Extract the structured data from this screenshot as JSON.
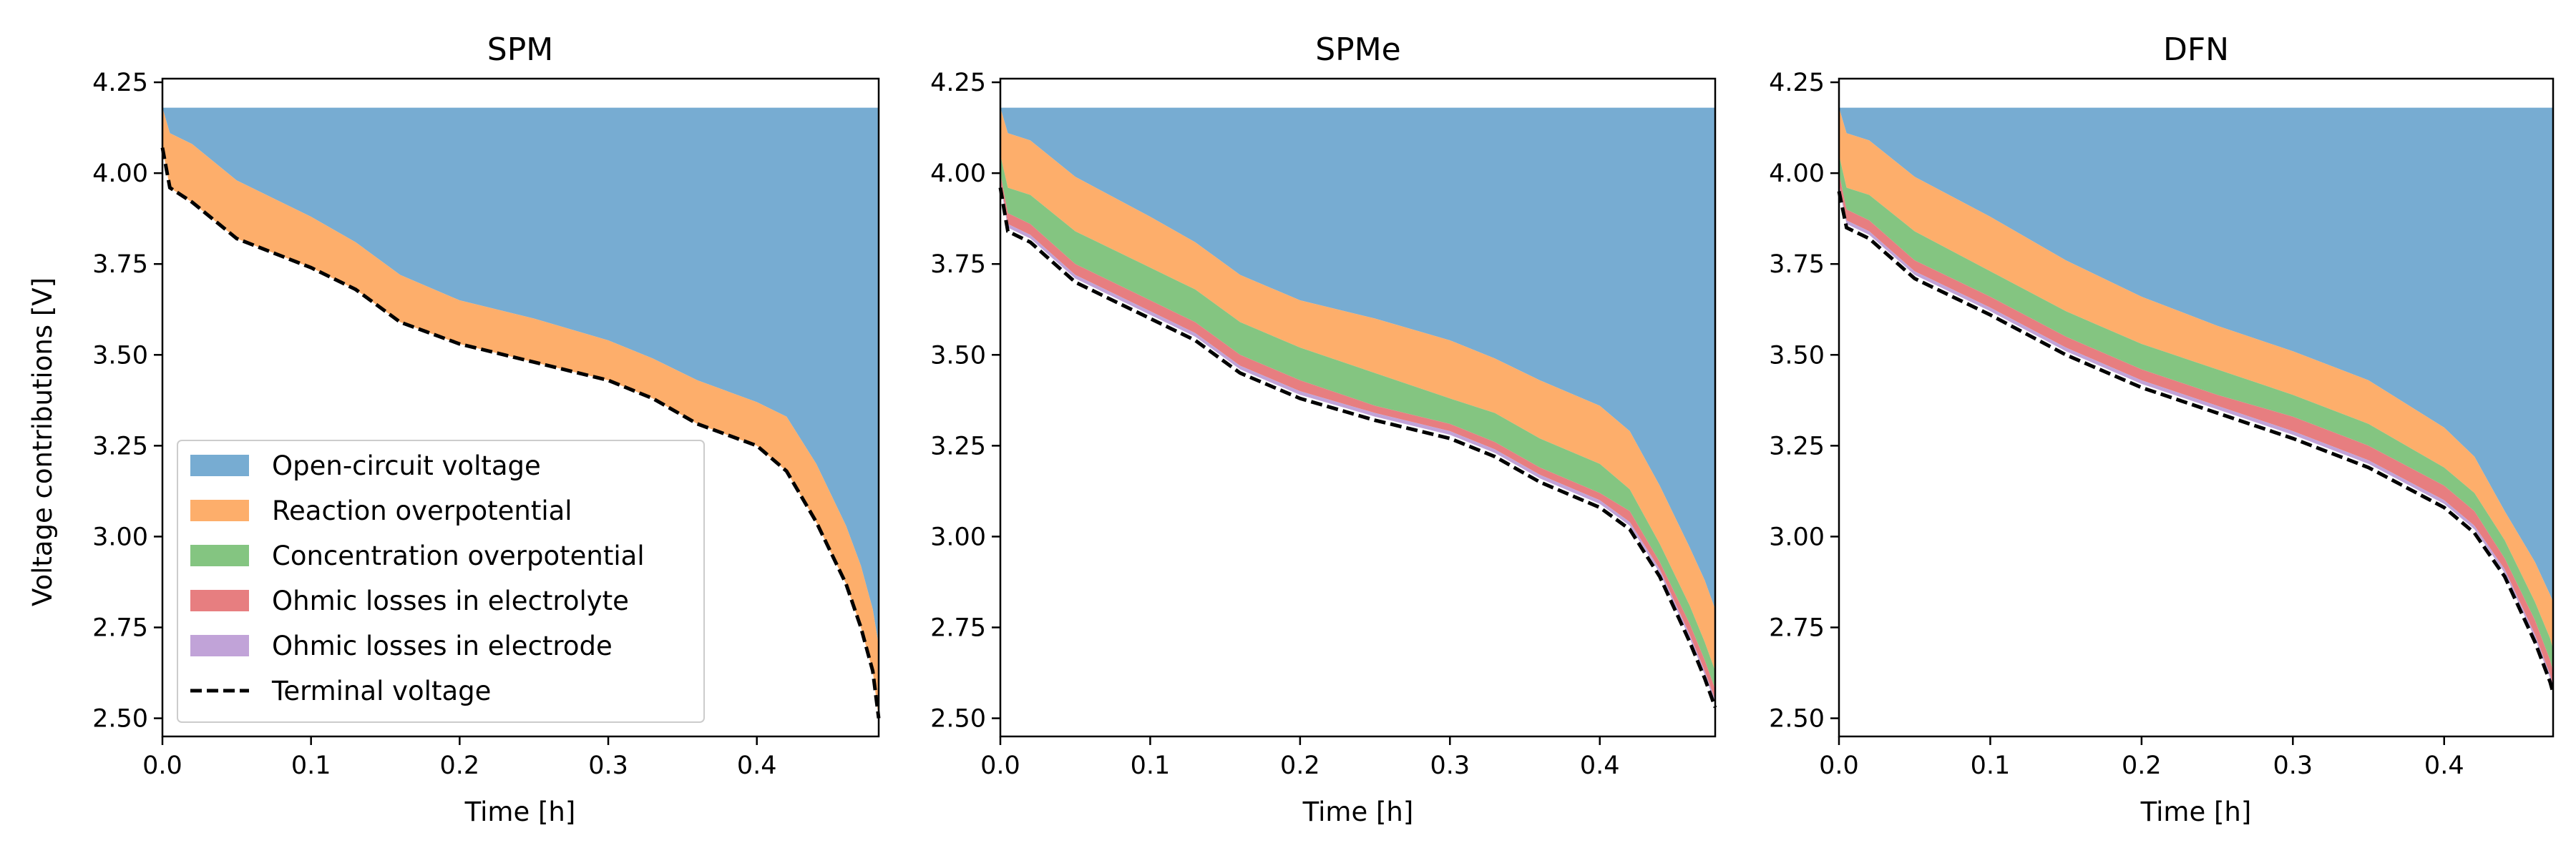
{
  "figure": {
    "panel_titles": [
      "SPM",
      "SPMe",
      "DFN"
    ],
    "xlabel": "Time [h]",
    "ylabel": "Voltage contributions [V]"
  },
  "legend": {
    "placement": "lower-left of first panel",
    "entries": [
      {
        "label": "Open-circuit voltage",
        "color": "#77acd2",
        "style": "patch"
      },
      {
        "label": "Reaction overpotential",
        "color": "#fdae6b",
        "style": "patch"
      },
      {
        "label": "Concentration overpotential",
        "color": "#84c581",
        "style": "patch"
      },
      {
        "label": "Ohmic losses in electrolyte",
        "color": "#e77e80",
        "style": "patch"
      },
      {
        "label": "Ohmic losses in electrode",
        "color": "#c1a3d8",
        "style": "patch"
      },
      {
        "label": "Terminal voltage",
        "color": "#000000",
        "style": "dashed-line"
      }
    ]
  },
  "chart_data": [
    {
      "type": "area",
      "title": "SPM",
      "xlabel": "Time [h]",
      "ylabel": "Voltage contributions [V]",
      "xlim": [
        0,
        0.482
      ],
      "ylim": [
        2.45,
        4.26
      ],
      "xticks": [
        0.0,
        0.1,
        0.2,
        0.3,
        0.4
      ],
      "yticks": [
        2.5,
        2.75,
        3.0,
        3.25,
        3.5,
        3.75,
        4.0,
        4.25
      ],
      "grid": false,
      "ocv_top": 4.18,
      "x": [
        0,
        0.005,
        0.02,
        0.05,
        0.1,
        0.13,
        0.16,
        0.2,
        0.25,
        0.3,
        0.33,
        0.36,
        0.4,
        0.42,
        0.44,
        0.46,
        0.47,
        0.478,
        0.482
      ],
      "boundaries": [
        {
          "name": "Open-circuit voltage",
          "values": [
            4.18,
            4.11,
            4.08,
            3.98,
            3.88,
            3.81,
            3.72,
            3.65,
            3.6,
            3.54,
            3.49,
            3.43,
            3.37,
            3.33,
            3.2,
            3.03,
            2.92,
            2.8,
            2.7
          ]
        },
        {
          "name": "Reaction overpotential",
          "values": [
            4.07,
            3.96,
            3.92,
            3.82,
            3.74,
            3.68,
            3.59,
            3.53,
            3.48,
            3.43,
            3.38,
            3.31,
            3.25,
            3.18,
            3.04,
            2.87,
            2.75,
            2.63,
            2.5
          ]
        },
        {
          "name": "Concentration overpotential",
          "values": [
            4.07,
            3.96,
            3.92,
            3.82,
            3.74,
            3.68,
            3.59,
            3.53,
            3.48,
            3.43,
            3.38,
            3.31,
            3.25,
            3.18,
            3.04,
            2.87,
            2.75,
            2.63,
            2.5
          ]
        },
        {
          "name": "Ohmic losses in electrolyte",
          "values": [
            4.07,
            3.96,
            3.92,
            3.82,
            3.74,
            3.68,
            3.59,
            3.53,
            3.48,
            3.43,
            3.38,
            3.31,
            3.25,
            3.18,
            3.04,
            2.87,
            2.75,
            2.63,
            2.5
          ]
        },
        {
          "name": "Ohmic losses in electrode",
          "values": [
            4.07,
            3.96,
            3.92,
            3.82,
            3.74,
            3.68,
            3.59,
            3.53,
            3.48,
            3.43,
            3.38,
            3.31,
            3.25,
            3.18,
            3.04,
            2.87,
            2.75,
            2.63,
            2.5
          ]
        }
      ],
      "terminal_voltage": [
        4.07,
        3.96,
        3.92,
        3.82,
        3.74,
        3.68,
        3.59,
        3.53,
        3.48,
        3.43,
        3.38,
        3.31,
        3.25,
        3.18,
        3.04,
        2.87,
        2.75,
        2.63,
        2.5
      ]
    },
    {
      "type": "area",
      "title": "SPMe",
      "xlabel": "Time [h]",
      "ylabel": "",
      "xlim": [
        0,
        0.477
      ],
      "ylim": [
        2.45,
        4.26
      ],
      "xticks": [
        0.0,
        0.1,
        0.2,
        0.3,
        0.4
      ],
      "yticks": [
        2.5,
        2.75,
        3.0,
        3.25,
        3.5,
        3.75,
        4.0,
        4.25
      ],
      "grid": false,
      "ocv_top": 4.18,
      "x": [
        0,
        0.005,
        0.02,
        0.05,
        0.1,
        0.13,
        0.16,
        0.2,
        0.25,
        0.3,
        0.33,
        0.36,
        0.4,
        0.42,
        0.44,
        0.46,
        0.47,
        0.477
      ],
      "boundaries": [
        {
          "name": "Open-circuit voltage",
          "values": [
            4.18,
            4.11,
            4.09,
            3.99,
            3.88,
            3.81,
            3.72,
            3.65,
            3.6,
            3.54,
            3.49,
            3.43,
            3.36,
            3.29,
            3.14,
            2.97,
            2.88,
            2.8
          ]
        },
        {
          "name": "Reaction overpotential",
          "values": [
            4.05,
            3.96,
            3.94,
            3.84,
            3.74,
            3.68,
            3.59,
            3.52,
            3.45,
            3.38,
            3.34,
            3.27,
            3.2,
            3.13,
            2.98,
            2.81,
            2.71,
            2.63
          ]
        },
        {
          "name": "Concentration overpotential",
          "values": [
            4.0,
            3.89,
            3.86,
            3.75,
            3.65,
            3.59,
            3.5,
            3.43,
            3.36,
            3.31,
            3.26,
            3.19,
            3.12,
            3.07,
            2.93,
            2.76,
            2.66,
            2.58
          ]
        },
        {
          "name": "Ohmic losses in electrolyte",
          "values": [
            3.98,
            3.86,
            3.83,
            3.72,
            3.62,
            3.56,
            3.47,
            3.4,
            3.34,
            3.29,
            3.24,
            3.17,
            3.1,
            3.04,
            2.91,
            2.73,
            2.63,
            2.55
          ]
        },
        {
          "name": "Ohmic losses in electrode",
          "values": [
            3.97,
            3.85,
            3.82,
            3.71,
            3.61,
            3.55,
            3.46,
            3.39,
            3.33,
            3.28,
            3.23,
            3.16,
            3.09,
            3.03,
            2.9,
            2.72,
            2.62,
            2.54
          ]
        }
      ],
      "terminal_voltage": [
        3.96,
        3.84,
        3.81,
        3.7,
        3.6,
        3.54,
        3.45,
        3.38,
        3.32,
        3.27,
        3.22,
        3.15,
        3.08,
        3.02,
        2.89,
        2.71,
        2.61,
        2.53
      ]
    },
    {
      "type": "area",
      "title": "DFN",
      "xlabel": "Time [h]",
      "ylabel": "",
      "xlim": [
        0,
        0.472
      ],
      "ylim": [
        2.45,
        4.26
      ],
      "xticks": [
        0.0,
        0.1,
        0.2,
        0.3,
        0.4
      ],
      "yticks": [
        2.5,
        2.75,
        3.0,
        3.25,
        3.5,
        3.75,
        4.0,
        4.25
      ],
      "grid": false,
      "ocv_top": 4.18,
      "x": [
        0,
        0.005,
        0.02,
        0.05,
        0.1,
        0.15,
        0.2,
        0.25,
        0.3,
        0.35,
        0.4,
        0.42,
        0.44,
        0.46,
        0.47,
        0.472
      ],
      "boundaries": [
        {
          "name": "Open-circuit voltage",
          "values": [
            4.18,
            4.11,
            4.09,
            3.99,
            3.88,
            3.76,
            3.66,
            3.58,
            3.51,
            3.43,
            3.3,
            3.22,
            3.07,
            2.93,
            2.84,
            2.82
          ]
        },
        {
          "name": "Reaction overpotential",
          "values": [
            4.05,
            3.96,
            3.94,
            3.84,
            3.73,
            3.62,
            3.53,
            3.46,
            3.39,
            3.31,
            3.19,
            3.12,
            2.99,
            2.82,
            2.72,
            2.69
          ]
        },
        {
          "name": "Concentration overpotential",
          "values": [
            4.0,
            3.9,
            3.87,
            3.76,
            3.66,
            3.55,
            3.46,
            3.39,
            3.33,
            3.25,
            3.14,
            3.07,
            2.94,
            2.77,
            2.66,
            2.63
          ]
        },
        {
          "name": "Ohmic losses in electrolyte",
          "values": [
            3.97,
            3.87,
            3.84,
            3.73,
            3.63,
            3.52,
            3.43,
            3.36,
            3.29,
            3.21,
            3.1,
            3.03,
            2.91,
            2.73,
            2.62,
            2.59
          ]
        },
        {
          "name": "Ohmic losses in electrode",
          "values": [
            3.96,
            3.86,
            3.83,
            3.72,
            3.62,
            3.51,
            3.42,
            3.35,
            3.28,
            3.2,
            3.09,
            3.02,
            2.9,
            2.72,
            2.61,
            2.58
          ]
        }
      ],
      "terminal_voltage": [
        3.95,
        3.85,
        3.82,
        3.71,
        3.61,
        3.5,
        3.41,
        3.34,
        3.27,
        3.19,
        3.08,
        3.01,
        2.89,
        2.71,
        2.6,
        2.57
      ]
    }
  ]
}
